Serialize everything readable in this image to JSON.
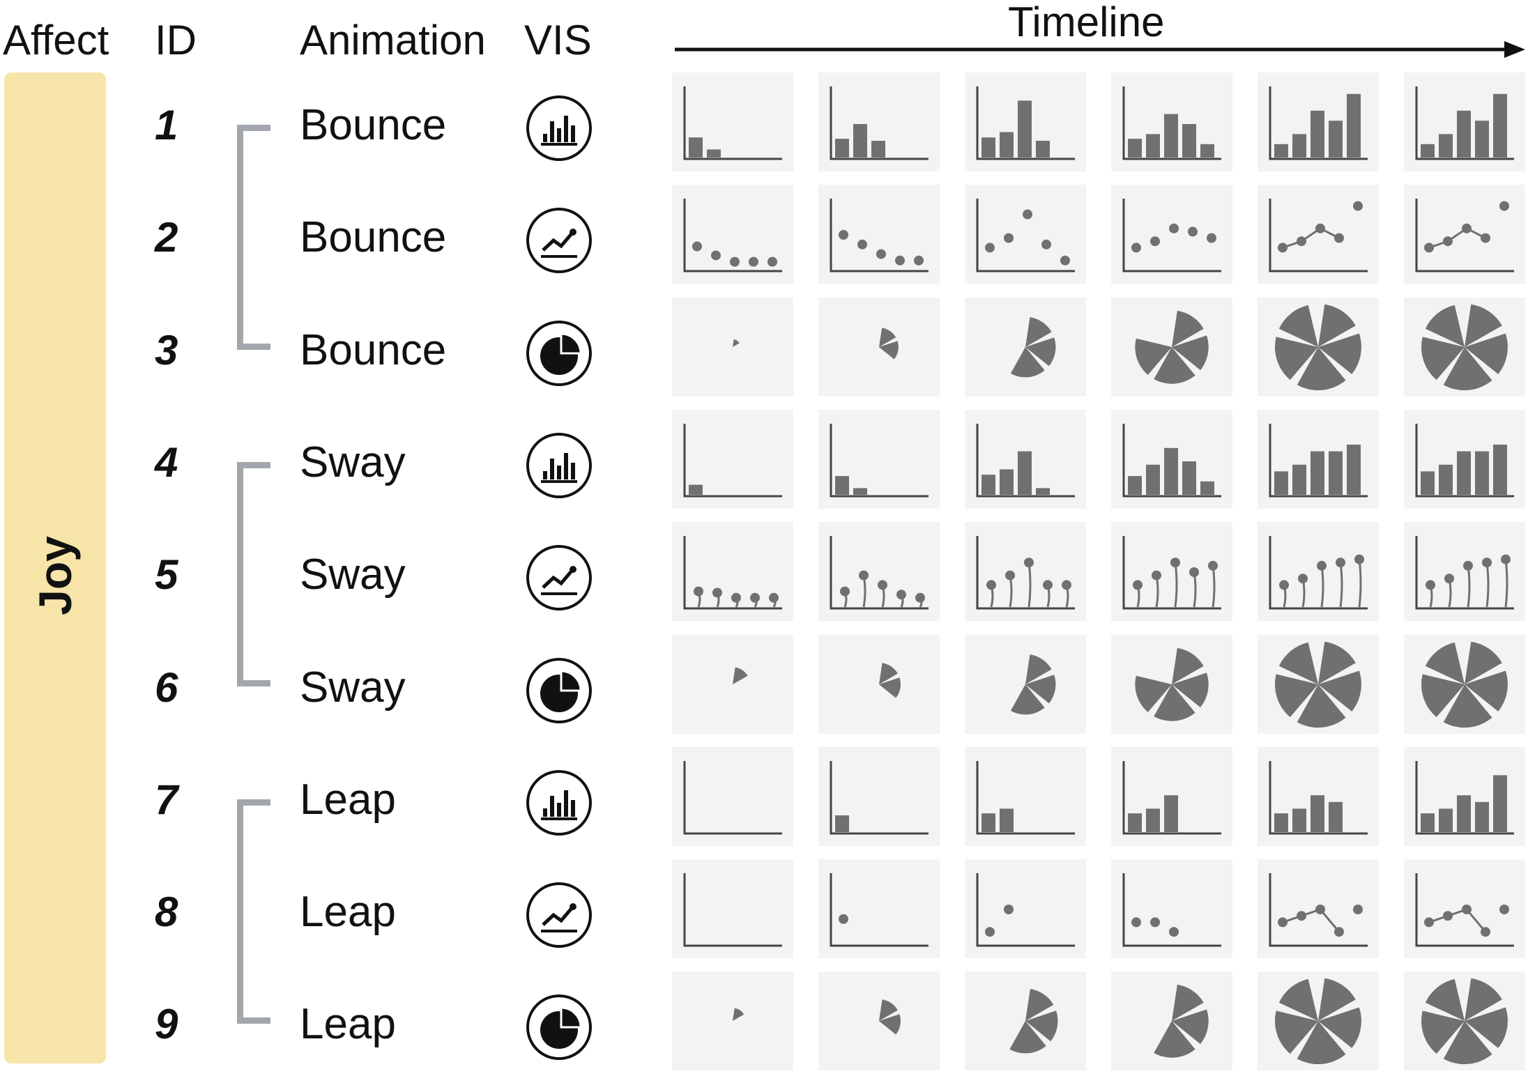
{
  "headers": {
    "affect": "Affect",
    "id": "ID",
    "animation": "Animation",
    "vis": "VIS",
    "timeline": "Timeline"
  },
  "affect_label": "Joy",
  "colors": {
    "affect_band": "#f6e4a9",
    "cell_bg": "#f2f3f5",
    "mark": "#707070",
    "axis": "#444444",
    "bracket": "#a2a7ad"
  },
  "groups": [
    {
      "animation": "Bounce",
      "rows": [
        "1",
        "2",
        "3"
      ]
    },
    {
      "animation": "Sway",
      "rows": [
        "4",
        "5",
        "6"
      ]
    },
    {
      "animation": "Leap",
      "rows": [
        "7",
        "8",
        "9"
      ]
    }
  ],
  "rows": [
    {
      "id": "1",
      "animation": "Bounce",
      "vis": "bar-chart-icon",
      "chart": "bar",
      "frames": [
        [
          0.3,
          0.12,
          0,
          0,
          0
        ],
        [
          0.28,
          0.5,
          0.25,
          0,
          0
        ],
        [
          0.3,
          0.38,
          0.85,
          0.25,
          0
        ],
        [
          0.28,
          0.35,
          0.65,
          0.5,
          0.2
        ],
        [
          0.2,
          0.35,
          0.7,
          0.55,
          0.95
        ],
        [
          0.2,
          0.35,
          0.7,
          0.55,
          0.95
        ]
      ]
    },
    {
      "id": "2",
      "animation": "Bounce",
      "vis": "line-chart-icon",
      "chart": "scatter",
      "frames": [
        {
          "pts": [
            0.32,
            0.18,
            0.08,
            0.08,
            0.08
          ],
          "line": false
        },
        {
          "pts": [
            0.5,
            0.35,
            0.2,
            0.1,
            0.1
          ],
          "line": false
        },
        {
          "pts": [
            0.3,
            0.45,
            0.82,
            0.35,
            0.1
          ],
          "line": false
        },
        {
          "pts": [
            0.3,
            0.4,
            0.6,
            0.55,
            0.45
          ],
          "line": false
        },
        {
          "pts": [
            0.3,
            0.4,
            0.6,
            0.45,
            0.95
          ],
          "line": true
        },
        {
          "pts": [
            0.3,
            0.4,
            0.6,
            0.45,
            0.95
          ],
          "line": true
        }
      ]
    },
    {
      "id": "3",
      "animation": "Bounce",
      "vis": "pie-chart-icon",
      "chart": "pie",
      "frames": [
        {
          "n": 1,
          "r": 0.18
        },
        {
          "n": 2,
          "r": 0.45
        },
        {
          "n": 3,
          "r": 0.7
        },
        {
          "n": 4,
          "r": 0.85
        },
        {
          "n": 5,
          "r": 1
        },
        {
          "n": 5,
          "r": 1
        }
      ]
    },
    {
      "id": "4",
      "animation": "Sway",
      "vis": "bar-chart-icon",
      "chart": "bar",
      "frames": [
        [
          0.15,
          0,
          0,
          0,
          0
        ],
        [
          0.28,
          0.1,
          0,
          0,
          0
        ],
        [
          0.3,
          0.38,
          0.65,
          0.1,
          0
        ],
        [
          0.28,
          0.45,
          0.7,
          0.5,
          0.2
        ],
        [
          0.35,
          0.45,
          0.65,
          0.65,
          0.75
        ],
        [
          0.35,
          0.45,
          0.65,
          0.65,
          0.75
        ]
      ]
    },
    {
      "id": "5",
      "animation": "Sway",
      "vis": "line-chart-icon",
      "chart": "lollipop",
      "frames": [
        [
          0.2,
          0.18,
          0.1,
          0.1,
          0.1
        ],
        [
          0.2,
          0.45,
          0.3,
          0.15,
          0.1
        ],
        [
          0.3,
          0.45,
          0.65,
          0.3,
          0.3
        ],
        [
          0.3,
          0.45,
          0.65,
          0.5,
          0.6
        ],
        [
          0.3,
          0.4,
          0.6,
          0.65,
          0.7
        ],
        [
          0.3,
          0.4,
          0.6,
          0.65,
          0.7
        ]
      ]
    },
    {
      "id": "6",
      "animation": "Sway",
      "vis": "pie-chart-icon",
      "chart": "pie",
      "frames": [
        {
          "n": 1,
          "r": 0.4
        },
        {
          "n": 2,
          "r": 0.5
        },
        {
          "n": 3,
          "r": 0.7
        },
        {
          "n": 4,
          "r": 0.85
        },
        {
          "n": 5,
          "r": 1
        },
        {
          "n": 5,
          "r": 1
        }
      ]
    },
    {
      "id": "7",
      "animation": "Leap",
      "vis": "bar-chart-icon",
      "chart": "bar",
      "frames": [
        [
          0,
          0,
          0,
          0,
          0
        ],
        [
          0.25,
          0,
          0,
          0,
          0
        ],
        [
          0.28,
          0.35,
          0,
          0,
          0
        ],
        [
          0.28,
          0.35,
          0.55,
          0,
          0
        ],
        [
          0.28,
          0.35,
          0.55,
          0.45,
          0
        ],
        [
          0.28,
          0.35,
          0.55,
          0.45,
          0.85
        ]
      ]
    },
    {
      "id": "8",
      "animation": "Leap",
      "vis": "line-chart-icon",
      "chart": "scatter",
      "frames": [
        {
          "pts": [
            null,
            null,
            null,
            null,
            null
          ],
          "line": false
        },
        {
          "pts": [
            0.35,
            null,
            null,
            null,
            null
          ],
          "line": false
        },
        {
          "pts": [
            0.15,
            0.5,
            null,
            null,
            null
          ],
          "line": false
        },
        {
          "pts": [
            0.3,
            0.3,
            0.15,
            null,
            null
          ],
          "line": false
        },
        {
          "pts": [
            0.3,
            0.4,
            0.5,
            0.15,
            0.5
          ],
          "line": true
        },
        {
          "pts": [
            0.3,
            0.4,
            0.5,
            0.15,
            0.5
          ],
          "line": true
        }
      ]
    },
    {
      "id": "9",
      "animation": "Leap",
      "vis": "pie-chart-icon",
      "chart": "pie",
      "frames": [
        {
          "n": 1,
          "r": 0.3
        },
        {
          "n": 2,
          "r": 0.5
        },
        {
          "n": 3,
          "r": 0.75
        },
        {
          "n": 3,
          "r": 0.85
        },
        {
          "n": 5,
          "r": 1
        },
        {
          "n": 5,
          "r": 1
        }
      ]
    }
  ]
}
